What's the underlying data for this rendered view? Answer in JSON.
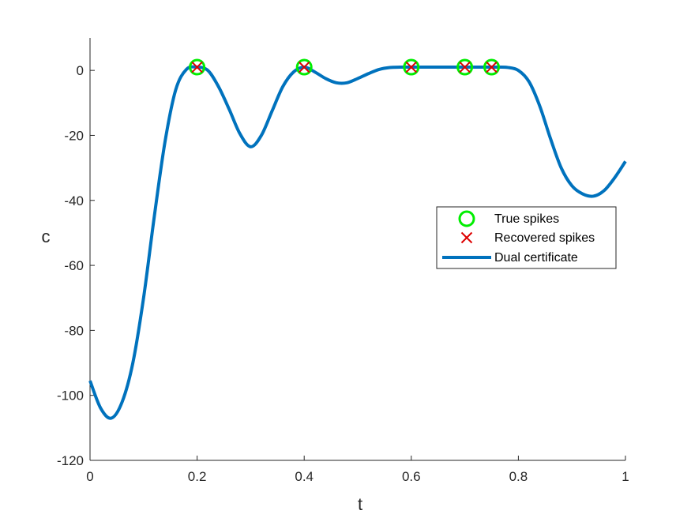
{
  "chart_data": {
    "type": "line",
    "xlabel": "t",
    "ylabel": "c",
    "xlim": [
      0,
      1
    ],
    "ylim": [
      -120,
      10
    ],
    "x_ticks": [
      "0",
      "0.2",
      "0.4",
      "0.6",
      "0.8",
      "1"
    ],
    "y_ticks": [
      "0",
      "-20",
      "-40",
      "-60",
      "-80",
      "-100",
      "-120"
    ],
    "grid": false,
    "legend_position": "right",
    "series": [
      {
        "name": "True spikes",
        "marker": "circle",
        "color": "#00ee00",
        "x": [
          0.2,
          0.4,
          0.6,
          0.7,
          0.75
        ],
        "y": [
          1,
          1,
          1,
          1,
          1
        ]
      },
      {
        "name": "Recovered spikes",
        "marker": "x",
        "color": "#dd0000",
        "x": [
          0.2,
          0.4,
          0.6,
          0.7,
          0.75
        ],
        "y": [
          1,
          1,
          1,
          1,
          1
        ]
      },
      {
        "name": "Dual certificate",
        "line": "solid",
        "color": "#0072bd",
        "x": [
          0,
          0.02,
          0.04,
          0.06,
          0.08,
          0.1,
          0.12,
          0.14,
          0.16,
          0.18,
          0.2,
          0.22,
          0.24,
          0.26,
          0.28,
          0.3,
          0.32,
          0.34,
          0.36,
          0.38,
          0.4,
          0.42,
          0.44,
          0.46,
          0.48,
          0.5,
          0.52,
          0.54,
          0.56,
          0.58,
          0.6,
          0.62,
          0.64,
          0.66,
          0.68,
          0.7,
          0.72,
          0.74,
          0.76,
          0.78,
          0.8,
          0.82,
          0.84,
          0.86,
          0.88,
          0.9,
          0.92,
          0.94,
          0.96,
          0.98,
          1.0
        ],
        "y": [
          -95.5,
          -104,
          -107,
          -102,
          -90,
          -70,
          -45,
          -22,
          -6,
          0.3,
          1,
          0,
          -5,
          -12,
          -19.5,
          -23.5,
          -20,
          -12.5,
          -5,
          -0.5,
          1,
          -0.5,
          -2.5,
          -3.8,
          -3.8,
          -2.5,
          -1,
          0.3,
          0.9,
          1,
          1,
          1,
          1,
          1,
          1,
          1,
          1,
          1,
          1,
          0.9,
          0,
          -3.5,
          -11,
          -21,
          -30,
          -35.5,
          -38,
          -38.7,
          -37,
          -33,
          -28
        ]
      }
    ]
  }
}
